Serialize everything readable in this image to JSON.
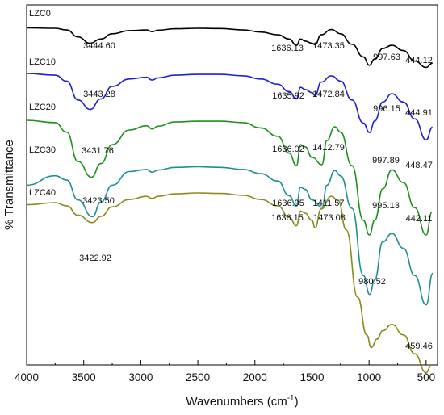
{
  "chart_data": {
    "type": "line",
    "xlabel": "Wavenumbers (cm",
    "xlabel_sup": "-1",
    "xlabel_end": ")",
    "ylabel": "% Transmittance",
    "xlim": [
      4000,
      400
    ],
    "x_reversed": true,
    "x_ticks": [
      "4000",
      "3500",
      "3000",
      "2500",
      "2000",
      "1500",
      "1000",
      "500"
    ],
    "y_ticks_shown": false,
    "grid": false,
    "legend": "none (labels placed on curves)",
    "series": [
      {
        "name": "LZC0",
        "color": "#000000",
        "points": [
          [
            4000,
            0.2
          ],
          [
            3750,
            0.4
          ],
          [
            3650,
            1.2
          ],
          [
            3550,
            4.5
          ],
          [
            3444.6,
            7.5
          ],
          [
            3350,
            5.5
          ],
          [
            3250,
            3
          ],
          [
            3100,
            1.5
          ],
          [
            2950,
            1.2
          ],
          [
            2900,
            2
          ],
          [
            2850,
            1.3
          ],
          [
            2700,
            0.6
          ],
          [
            2500,
            0.4
          ],
          [
            2300,
            0.5
          ],
          [
            2100,
            1.2
          ],
          [
            1950,
            2.2
          ],
          [
            1800,
            3.5
          ],
          [
            1700,
            5.5
          ],
          [
            1636.13,
            8.5
          ],
          [
            1600,
            5.5
          ],
          [
            1560,
            6.5
          ],
          [
            1500,
            7.5
          ],
          [
            1473.35,
            8.2
          ],
          [
            1420,
            3.5
          ],
          [
            1330,
            1
          ],
          [
            1250,
            3
          ],
          [
            1150,
            8
          ],
          [
            1050,
            14
          ],
          [
            997.63,
            18
          ],
          [
            950,
            15
          ],
          [
            880,
            10
          ],
          [
            800,
            8.5
          ],
          [
            700,
            11
          ],
          [
            600,
            16
          ],
          [
            500,
            19
          ],
          [
            444.12,
            17
          ]
        ],
        "peak_labels": [
          "3444.60",
          "1636.13",
          "1473.35",
          "997.63",
          "444.12"
        ]
      },
      {
        "name": "LZC10",
        "color": "#1f1fd6",
        "points": [
          [
            4000,
            0.4
          ],
          [
            3750,
            1.2
          ],
          [
            3650,
            4
          ],
          [
            3550,
            13
          ],
          [
            3443.28,
            17.5
          ],
          [
            3350,
            12.5
          ],
          [
            3250,
            6.5
          ],
          [
            3100,
            3
          ],
          [
            2950,
            2.2
          ],
          [
            2900,
            3.5
          ],
          [
            2850,
            2.5
          ],
          [
            2700,
            1.2
          ],
          [
            2500,
            0.8
          ],
          [
            2300,
            0.8
          ],
          [
            2100,
            1.5
          ],
          [
            1950,
            3
          ],
          [
            1800,
            5.5
          ],
          [
            1700,
            9
          ],
          [
            1635.92,
            12.5
          ],
          [
            1600,
            7
          ],
          [
            1560,
            8
          ],
          [
            1500,
            9.5
          ],
          [
            1472.84,
            11
          ],
          [
            1420,
            4.5
          ],
          [
            1330,
            1.5
          ],
          [
            1250,
            4
          ],
          [
            1150,
            13
          ],
          [
            1050,
            24
          ],
          [
            996.15,
            28.5
          ],
          [
            950,
            23
          ],
          [
            880,
            14
          ],
          [
            800,
            10
          ],
          [
            700,
            14
          ],
          [
            600,
            22
          ],
          [
            500,
            32
          ],
          [
            444.91,
            26
          ]
        ],
        "peak_labels": [
          "3443.28",
          "1635.92",
          "1472.84",
          "996.15",
          "444.91"
        ]
      },
      {
        "name": "LZC20",
        "color": "#1f8f1f",
        "points": [
          [
            4000,
            0.4
          ],
          [
            3750,
            1.5
          ],
          [
            3650,
            6
          ],
          [
            3550,
            20
          ],
          [
            3431.76,
            27.5
          ],
          [
            3350,
            21
          ],
          [
            3250,
            12
          ],
          [
            3100,
            5
          ],
          [
            2950,
            3
          ],
          [
            2900,
            4.5
          ],
          [
            2850,
            3.2
          ],
          [
            2700,
            1.2
          ],
          [
            2500,
            0.8
          ],
          [
            2300,
            0.8
          ],
          [
            2100,
            1.5
          ],
          [
            1950,
            4
          ],
          [
            1800,
            8
          ],
          [
            1700,
            16
          ],
          [
            1636.02,
            22
          ],
          [
            1600,
            12
          ],
          [
            1560,
            13
          ],
          [
            1500,
            18
          ],
          [
            1412.79,
            21.5
          ],
          [
            1370,
            10
          ],
          [
            1300,
            3.5
          ],
          [
            1250,
            6
          ],
          [
            1150,
            22
          ],
          [
            1050,
            48
          ],
          [
            997.89,
            55
          ],
          [
            950,
            48
          ],
          [
            880,
            33
          ],
          [
            800,
            24
          ],
          [
            700,
            30
          ],
          [
            600,
            42
          ],
          [
            500,
            55
          ],
          [
            448.47,
            44
          ]
        ],
        "peak_labels": [
          "3431.76",
          "1636.02",
          "1412.79",
          "997.89",
          "448.47"
        ]
      },
      {
        "name": "LZC30",
        "color": "#1f8f8f",
        "points": [
          [
            4000,
            9
          ],
          [
            3750,
            4.5
          ],
          [
            3650,
            6.5
          ],
          [
            3550,
            16
          ],
          [
            3423.5,
            24
          ],
          [
            3350,
            17
          ],
          [
            3250,
            9
          ],
          [
            3100,
            2.5
          ],
          [
            2950,
            1.5
          ],
          [
            2900,
            2.8
          ],
          [
            2850,
            1.8
          ],
          [
            2700,
            0.5
          ],
          [
            2500,
            0.2
          ],
          [
            2300,
            0.5
          ],
          [
            2100,
            1.5
          ],
          [
            1950,
            3.5
          ],
          [
            1800,
            7
          ],
          [
            1700,
            14
          ],
          [
            1636.95,
            19
          ],
          [
            1600,
            10
          ],
          [
            1560,
            11
          ],
          [
            1500,
            16
          ],
          [
            1411.57,
            19.5
          ],
          [
            1370,
            9
          ],
          [
            1300,
            2
          ],
          [
            1250,
            4.5
          ],
          [
            1150,
            20
          ],
          [
            1050,
            52
          ],
          [
            995.13,
            61
          ],
          [
            950,
            54
          ],
          [
            880,
            36
          ],
          [
            800,
            32
          ],
          [
            700,
            39
          ],
          [
            600,
            52
          ],
          [
            500,
            66
          ],
          [
            442.11,
            51
          ]
        ],
        "peak_labels": [
          "3423.50",
          "1636.95",
          "1411.57",
          "995.13",
          "442.11"
        ]
      },
      {
        "name": "LZC40",
        "color": "#8c8a1a",
        "points": [
          [
            4000,
            6
          ],
          [
            3750,
            5
          ],
          [
            3650,
            6.5
          ],
          [
            3550,
            11
          ],
          [
            3422.92,
            14.5
          ],
          [
            3350,
            11.5
          ],
          [
            3250,
            7
          ],
          [
            3100,
            3.5
          ],
          [
            2950,
            2
          ],
          [
            2900,
            3
          ],
          [
            2850,
            2
          ],
          [
            2700,
            0.8
          ],
          [
            2500,
            0.4
          ],
          [
            2300,
            0.6
          ],
          [
            2100,
            1.5
          ],
          [
            1950,
            3.5
          ],
          [
            1800,
            6.5
          ],
          [
            1700,
            12
          ],
          [
            1636.15,
            16
          ],
          [
            1600,
            9
          ],
          [
            1560,
            10
          ],
          [
            1500,
            13.5
          ],
          [
            1473.08,
            17
          ],
          [
            1420,
            8
          ],
          [
            1330,
            2
          ],
          [
            1270,
            4
          ],
          [
            1200,
            18
          ],
          [
            1100,
            50
          ],
          [
            1020,
            68
          ],
          [
            980.52,
            74
          ],
          [
            930,
            70
          ],
          [
            880,
            66
          ],
          [
            800,
            63
          ],
          [
            700,
            68
          ],
          [
            600,
            77
          ],
          [
            500,
            86
          ],
          [
            459.46,
            83
          ]
        ],
        "peak_labels": [
          "3422.92",
          "1636.15",
          "1473.08",
          "980.52",
          "459.46"
        ]
      }
    ]
  }
}
